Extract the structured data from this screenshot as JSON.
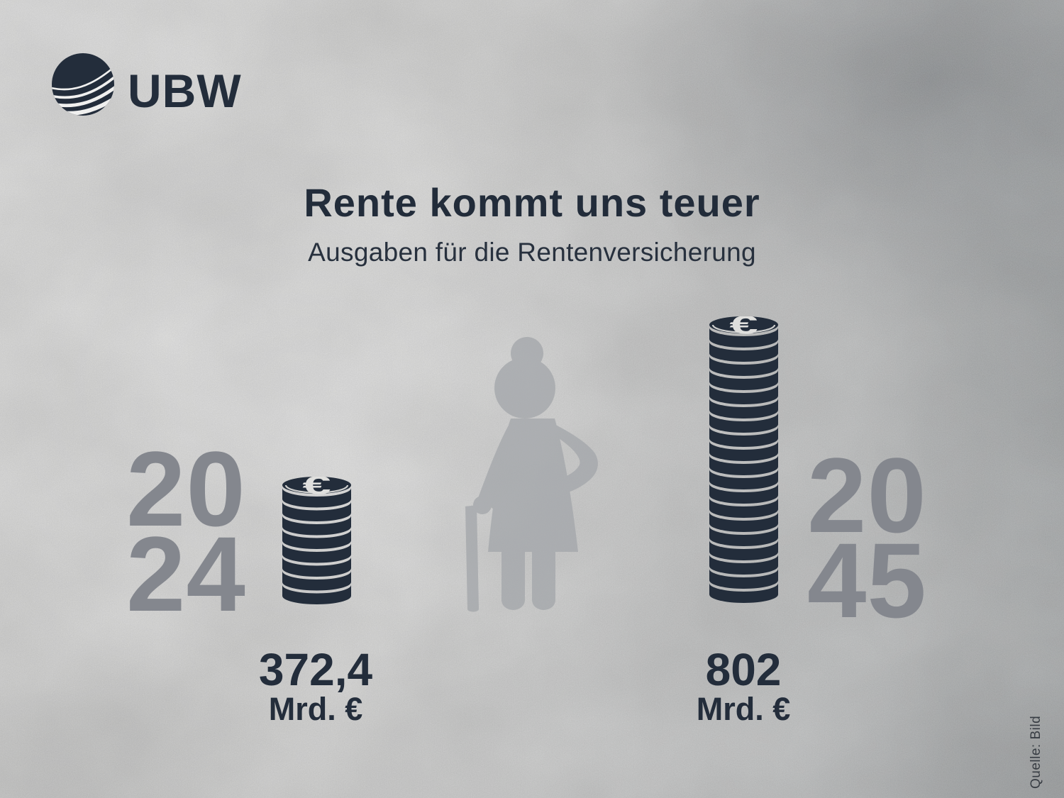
{
  "brand": {
    "name": "UBW"
  },
  "header": {
    "title": "Rente kommt uns teuer",
    "subtitle": "Ausgaben für die Rentenversicherung"
  },
  "left": {
    "year_line1": "20",
    "year_line2": "24",
    "value": "372,4",
    "unit": "Mrd. €"
  },
  "right": {
    "year_line1": "20",
    "year_line2": "45",
    "value": "802",
    "unit": "Mrd. €"
  },
  "coin": {
    "symbol": "€"
  },
  "source": {
    "label": "Quelle: Bild"
  },
  "colors": {
    "ink": "#232d3b",
    "year_gray": "#84878e",
    "figure_gray": "#a4a7ab",
    "coin_face_light": "#dfdfdd"
  },
  "chart_data": {
    "type": "bar",
    "pictogram": "coin-stacks",
    "title": "Rente kommt uns teuer",
    "subtitle": "Ausgaben für die Rentenversicherung",
    "categories": [
      "2024",
      "2045"
    ],
    "values": [
      372.4,
      802
    ],
    "value_labels": [
      "372,4",
      "802"
    ],
    "unit": "Mrd. €",
    "coin_counts": [
      9,
      20
    ],
    "source": "Quelle: Bild",
    "legend_position": "none",
    "grid": false
  }
}
